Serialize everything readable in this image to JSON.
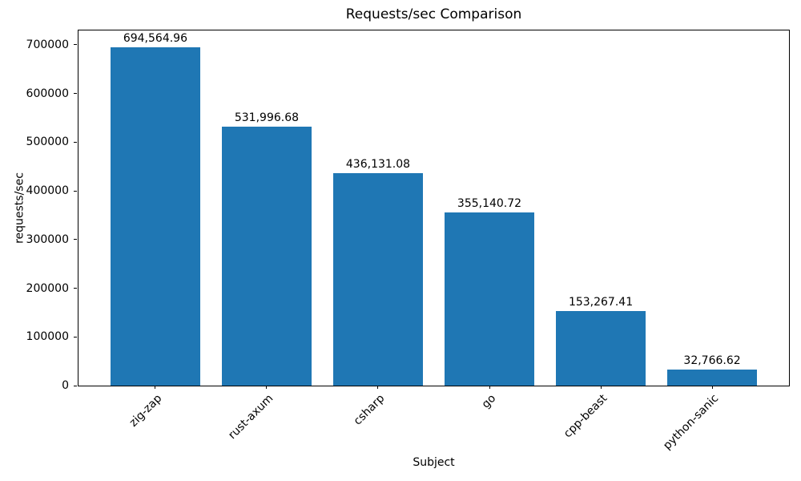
{
  "chart_data": {
    "type": "bar",
    "title": "Requests/sec Comparison",
    "xlabel": "Subject",
    "ylabel": "requests/sec",
    "categories": [
      "zig-zap",
      "rust-axum",
      "csharp",
      "go",
      "cpp-beast",
      "python-sanic"
    ],
    "values": [
      694564.96,
      531996.68,
      436131.08,
      355140.72,
      153267.41,
      32766.62
    ],
    "value_labels": [
      "694,564.96",
      "531,996.68",
      "436,131.08",
      "355,140.72",
      "153,267.41",
      "32,766.62"
    ],
    "yticks": [
      0,
      100000,
      200000,
      300000,
      400000,
      500000,
      600000,
      700000
    ],
    "ytick_labels": [
      "0",
      "100000",
      "200000",
      "300000",
      "400000",
      "500000",
      "600000",
      "700000"
    ],
    "ylim": [
      0,
      729293
    ],
    "xlim": [
      -0.69,
      5.69
    ],
    "bar_width": 0.8,
    "bar_color": "#1f77b4",
    "grid": false,
    "legend": "none",
    "x_tick_rotation": 45
  }
}
